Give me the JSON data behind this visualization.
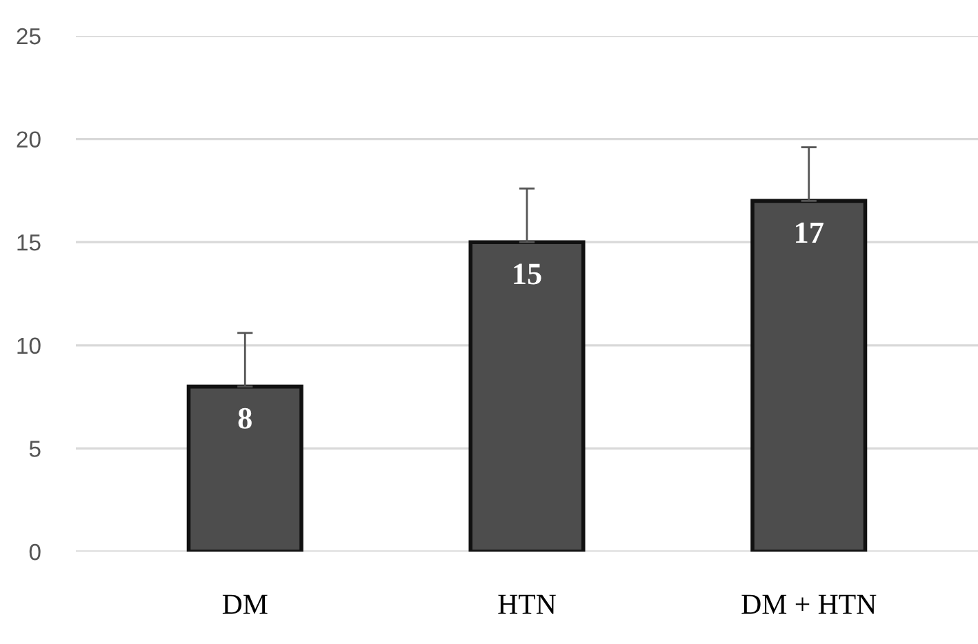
{
  "chart_data": {
    "type": "bar",
    "categories": [
      "DM",
      "HTN",
      "DM + HTN"
    ],
    "values": [
      8,
      15,
      17
    ],
    "errors": [
      [
        8,
        10.6
      ],
      [
        15,
        17.6
      ],
      [
        17,
        19.6
      ]
    ],
    "color": "#4d4d4d",
    "ylim": [
      0,
      25
    ],
    "yticks": [
      0,
      5,
      10,
      15,
      20,
      25
    ],
    "grid": "y",
    "data_labels": true
  }
}
